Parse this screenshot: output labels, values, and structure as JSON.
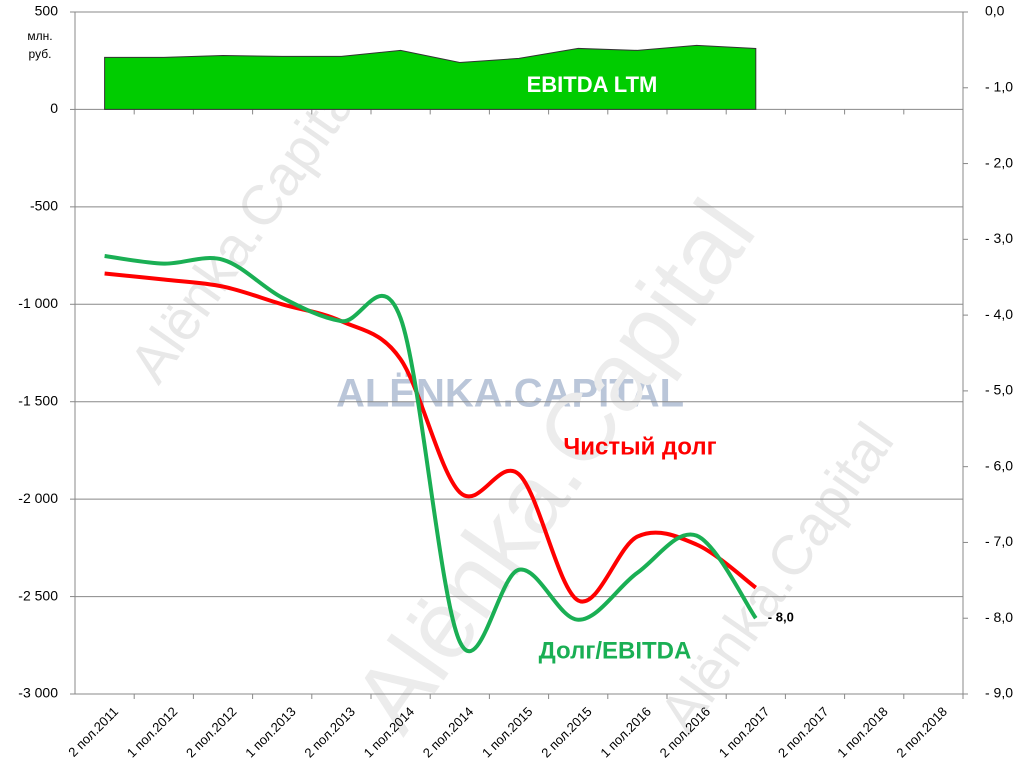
{
  "chart_data": {
    "type": "line",
    "categories": [
      "2 пол.2011",
      "1 пол.2012",
      "2 пол.2012",
      "1 пол.2013",
      "2 пол.2013",
      "1 пол.2014",
      "2 пол.2014",
      "1 пол.2015",
      "2 пол.2015",
      "1 пол.2016",
      "2 пол.2016",
      "1 пол.2017",
      "2 пол.2017",
      "1 пол.2018",
      "2 пол.2018"
    ],
    "series": [
      {
        "name": "EBITDA LTM",
        "kind": "area",
        "color": "#00cc00",
        "values": [
          267,
          267,
          277,
          272,
          272,
          303,
          241,
          262,
          313,
          303,
          329,
          313,
          null,
          null,
          null
        ]
      },
      {
        "name": "Чистый долг",
        "color": "#ff0000",
        "values": [
          -842,
          -873,
          -909,
          -1000,
          -1087,
          -1282,
          -1965,
          -1873,
          -2520,
          -2192,
          -2233,
          -2454,
          null,
          null,
          null
        ]
      },
      {
        "name": "Долг/EBITDA",
        "color": "#1aaf54",
        "axis": "y2",
        "values": [
          -3.22,
          -3.32,
          -3.27,
          -3.77,
          -4.08,
          -4.04,
          -8.31,
          -7.36,
          -8.02,
          -7.4,
          -6.91,
          -8.0,
          null,
          null,
          null
        ],
        "value_labels": [
          null,
          null,
          null,
          null,
          null,
          null,
          null,
          null,
          null,
          null,
          null,
          "- 8,0",
          null,
          null,
          null
        ]
      }
    ],
    "ylim": [
      -3000,
      500
    ],
    "yticks": [
      500,
      0,
      -500,
      {
        "value": -1000,
        "label": "-1 000"
      },
      {
        "value": -1500,
        "label": "-1 500"
      },
      {
        "value": -2000,
        "label": "-2 000"
      },
      {
        "value": -2500,
        "label": "-2 500"
      },
      {
        "value": -3000,
        "label": "-3 000"
      }
    ],
    "y2lim": [
      -9,
      0
    ],
    "y2ticks": [
      {
        "value": 0,
        "label": "0,0"
      },
      {
        "value": -1,
        "label": "- 1,0"
      },
      {
        "value": -2,
        "label": "- 2,0"
      },
      {
        "value": -3,
        "label": "- 3,0"
      },
      {
        "value": -4,
        "label": "- 4,0"
      },
      {
        "value": -5,
        "label": "- 5,0"
      },
      {
        "value": -6,
        "label": "- 6,0"
      },
      {
        "value": -7,
        "label": "- 7,0"
      },
      {
        "value": -8,
        "label": "- 8,0"
      },
      {
        "value": -9,
        "label": "- 9,0"
      }
    ],
    "y_unit": "млн. руб.",
    "watermarks": [
      "ALËNKA.CAPITAL",
      "Alёnka.Capital"
    ],
    "grid": true
  }
}
